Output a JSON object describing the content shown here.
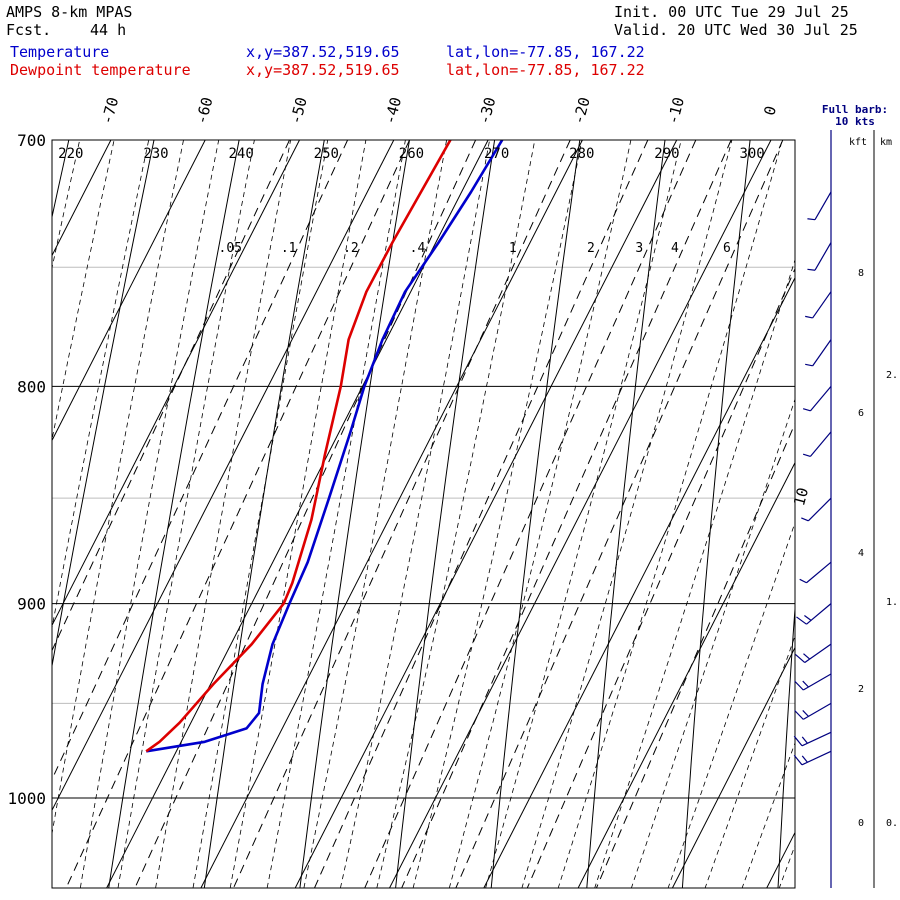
{
  "header": {
    "model": "AMPS 8-km MPAS",
    "fcst_label": "Fcst.",
    "fcst_value": "44 h",
    "init": "Init. 00 UTC Tue 29 Jul 25",
    "valid": "Valid. 20 UTC Wed 30 Jul 25",
    "series": [
      {
        "name": "Temperature",
        "xy": "x,y=387.52,519.65",
        "latlon": "lat,lon=-77.85, 167.22",
        "color": "#0000cc"
      },
      {
        "name": "Dewpoint temperature",
        "xy": "x,y=387.52,519.65",
        "latlon": "lat,lon=-77.85, 167.22",
        "color": "#dd0000"
      }
    ]
  },
  "wind_panel": {
    "title_line1": "Full barb:",
    "title_line2": "10 kts",
    "unit_kft": "kft",
    "unit_km": "km",
    "kft_ticks": [
      "8",
      "6",
      "4",
      "2",
      "0"
    ],
    "km_ticks": [
      "2.",
      "1.",
      "0."
    ]
  },
  "chart_data": {
    "type": "skew-t",
    "pressure_axis": {
      "ticks": [
        "700",
        "800",
        "900",
        "1000"
      ],
      "range_hPa": [
        1040,
        700
      ],
      "scale": "log"
    },
    "isotherm_labels": [
      "-70",
      "-60",
      "-50",
      "-40",
      "-30",
      "-20",
      "-10",
      "0"
    ],
    "isotherm_extra_label": "10",
    "theta_labels": [
      "220",
      "230",
      "240",
      "250",
      "260",
      "270",
      "280",
      "290",
      "300"
    ],
    "mixing_ratio_labels": [
      ".05",
      ".1",
      ".2",
      ".4",
      "1",
      "2",
      "3",
      "4",
      "6"
    ],
    "series": [
      {
        "name": "Temperature",
        "color": "#0000cc",
        "points": [
          [
            700,
            -28.5
          ],
          [
            720,
            -29.0
          ],
          [
            740,
            -29.7
          ],
          [
            760,
            -30.6
          ],
          [
            780,
            -30.4
          ],
          [
            800,
            -29.8
          ],
          [
            820,
            -28.8
          ],
          [
            850,
            -27.5
          ],
          [
            880,
            -26.3
          ],
          [
            900,
            -26.0
          ],
          [
            920,
            -25.6
          ],
          [
            940,
            -24.5
          ],
          [
            955,
            -23.3
          ],
          [
            963,
            -23.8
          ],
          [
            970,
            -27.5
          ],
          [
            975,
            -33.2
          ]
        ]
      },
      {
        "name": "Dewpoint temperature",
        "color": "#dd0000",
        "points": [
          [
            700,
            -34.0
          ],
          [
            740,
            -34.6
          ],
          [
            760,
            -34.7
          ],
          [
            780,
            -34.0
          ],
          [
            800,
            -32.3
          ],
          [
            830,
            -30.3
          ],
          [
            860,
            -28.2
          ],
          [
            890,
            -26.8
          ],
          [
            900,
            -26.6
          ],
          [
            920,
            -27.8
          ],
          [
            940,
            -29.7
          ],
          [
            960,
            -31.2
          ],
          [
            970,
            -32.3
          ],
          [
            975,
            -33.2
          ]
        ]
      }
    ],
    "wind_barbs": [
      {
        "p": 720,
        "dir": 210,
        "kt": 5
      },
      {
        "p": 740,
        "dir": 210,
        "kt": 5
      },
      {
        "p": 760,
        "dir": 215,
        "kt": 5
      },
      {
        "p": 780,
        "dir": 215,
        "kt": 5
      },
      {
        "p": 800,
        "dir": 220,
        "kt": 5
      },
      {
        "p": 820,
        "dir": 220,
        "kt": 5
      },
      {
        "p": 850,
        "dir": 225,
        "kt": 5
      },
      {
        "p": 880,
        "dir": 230,
        "kt": 5
      },
      {
        "p": 900,
        "dir": 230,
        "kt": 10
      },
      {
        "p": 920,
        "dir": 235,
        "kt": 10
      },
      {
        "p": 935,
        "dir": 240,
        "kt": 10
      },
      {
        "p": 950,
        "dir": 240,
        "kt": 10
      },
      {
        "p": 965,
        "dir": 245,
        "kt": 10
      },
      {
        "p": 975,
        "dir": 245,
        "kt": 10
      }
    ]
  }
}
